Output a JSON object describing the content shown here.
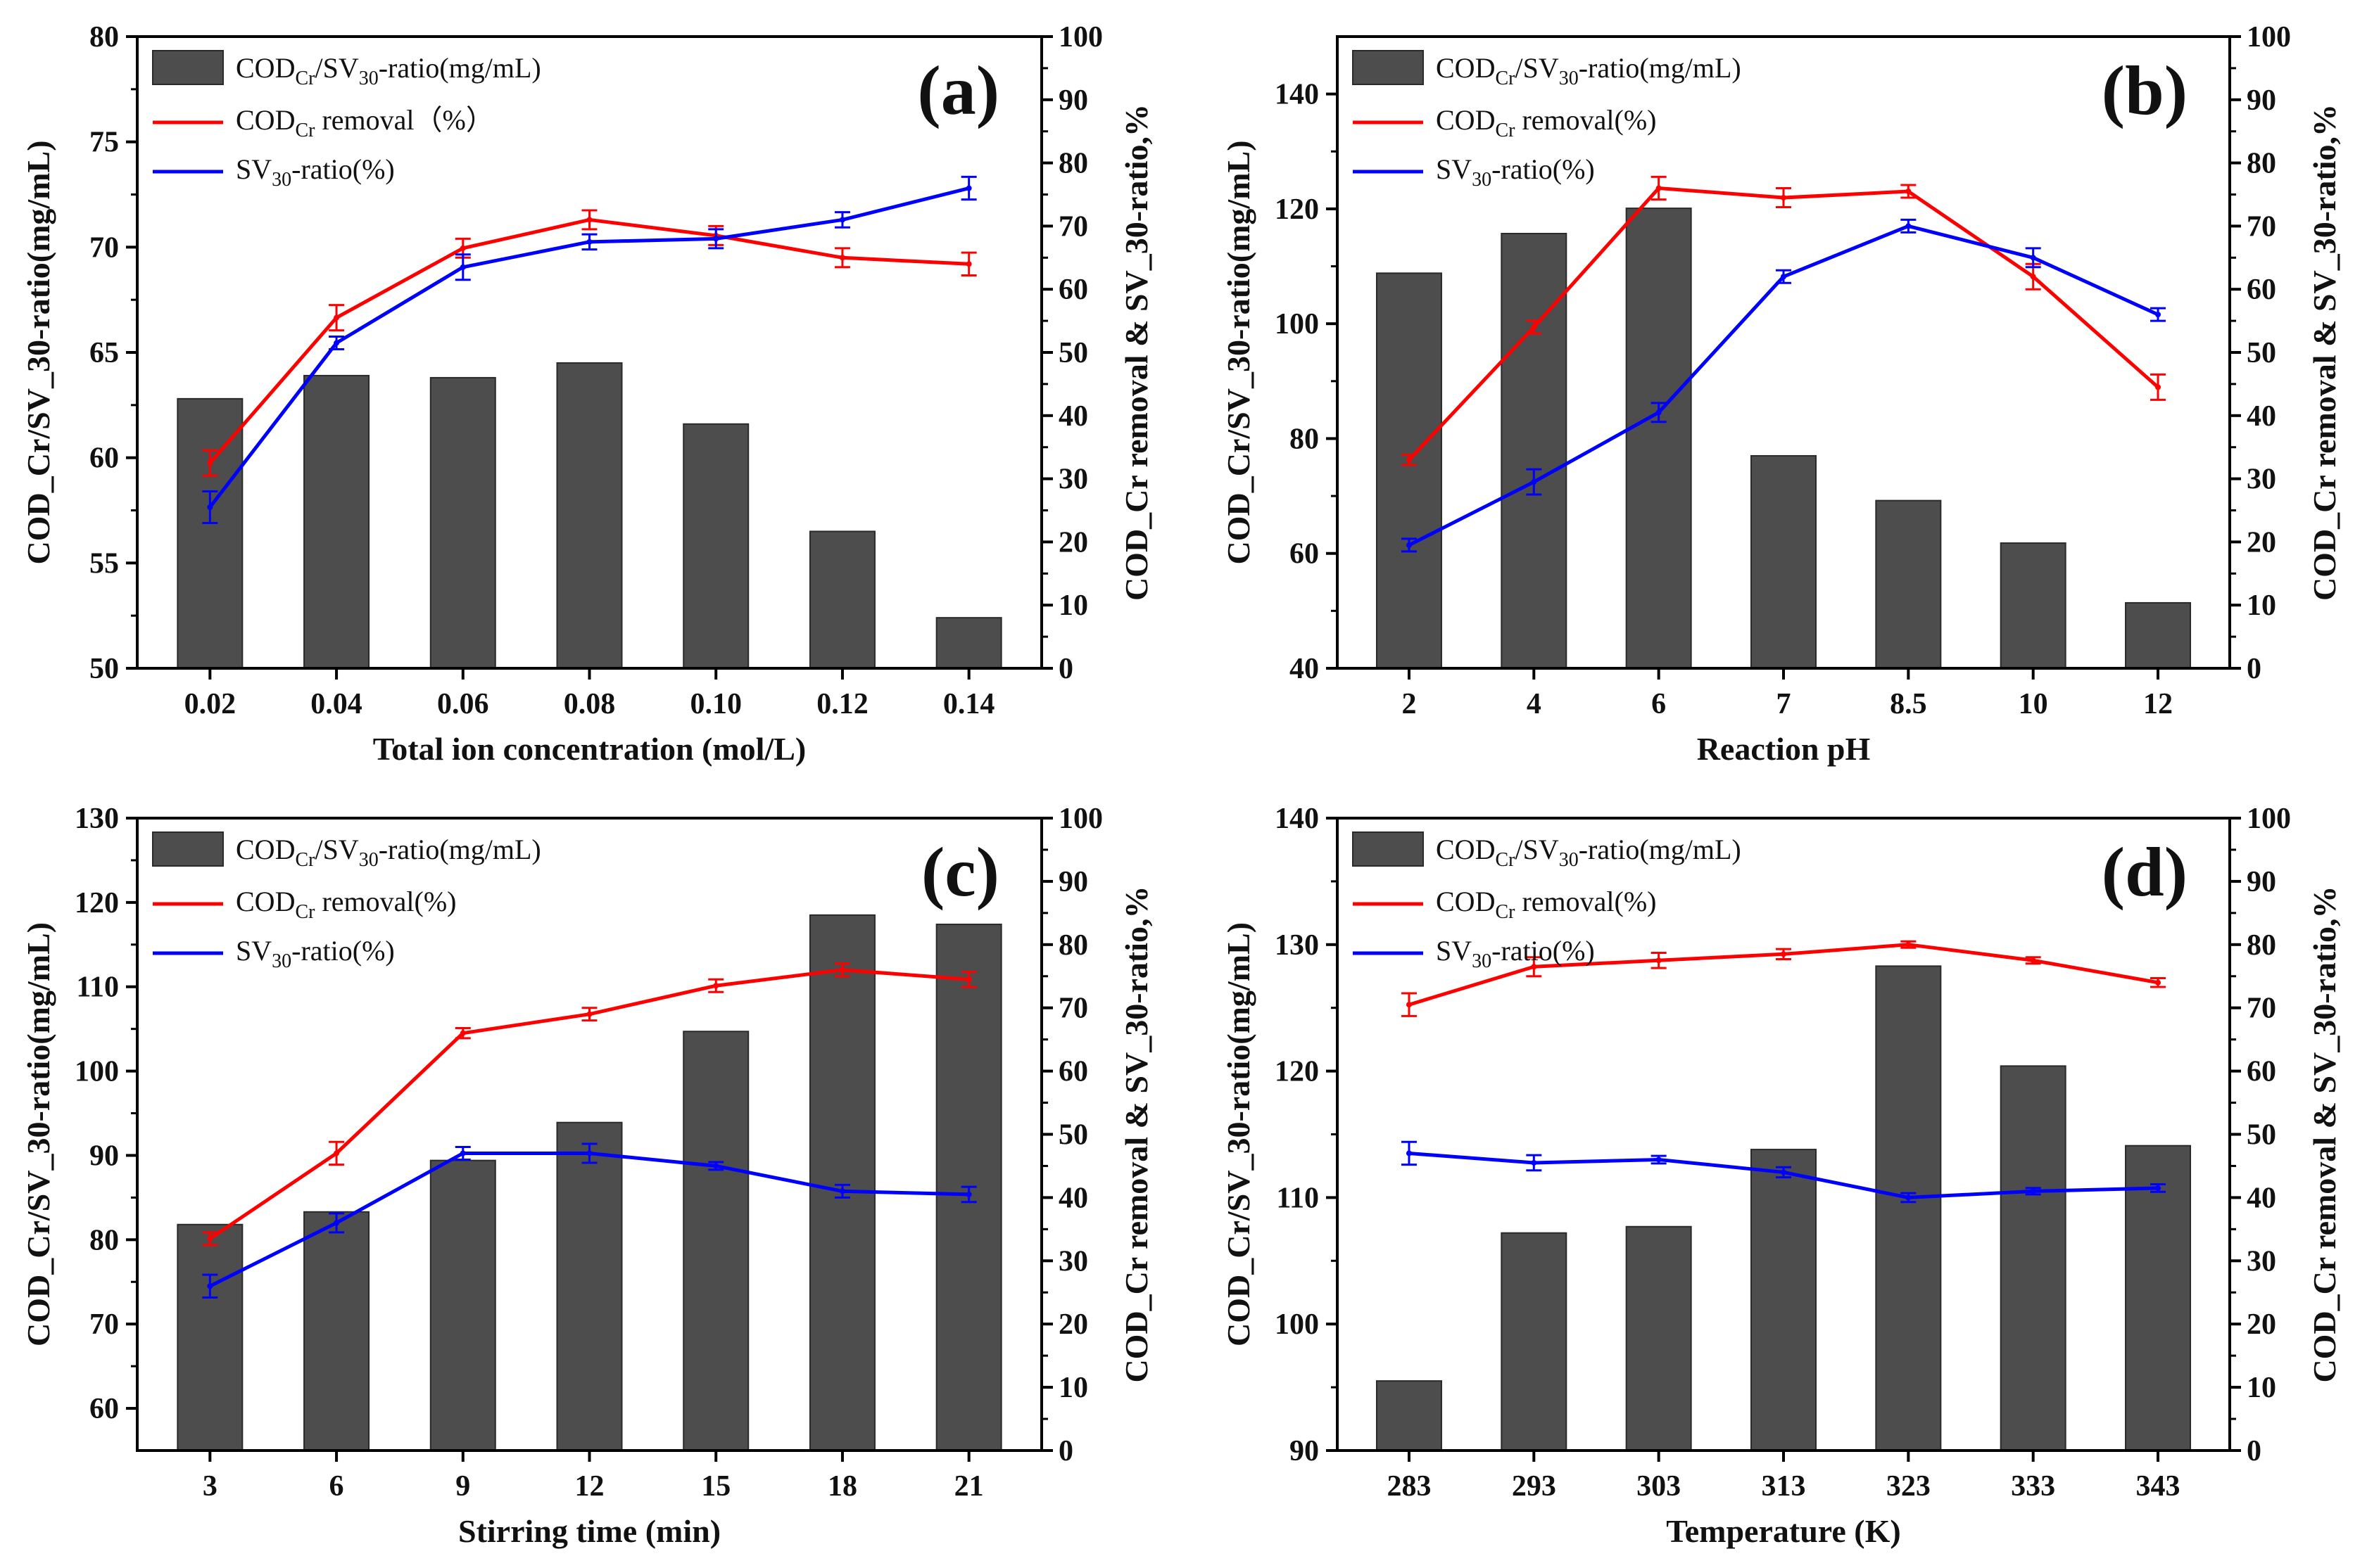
{
  "chart_data": [
    {
      "type": "bar",
      "panel_label": "(a)",
      "xlabel": "Total ion concentration (mol/L)",
      "ylabel_left": "COD_Cr/SV_30-ratio(mg/mL)",
      "ylabel_right": "COD_Cr removal & SV_30-ratio,%",
      "categories": [
        "0.02",
        "0.04",
        "0.06",
        "0.08",
        "0.10",
        "0.12",
        "0.14"
      ],
      "ylim_left": [
        50,
        80
      ],
      "yticks_left": [
        50,
        55,
        60,
        65,
        70,
        75,
        80
      ],
      "ylim_right": [
        0,
        100
      ],
      "yticks_right": [
        0,
        10,
        20,
        30,
        40,
        50,
        60,
        70,
        80,
        90,
        100
      ],
      "legend": {
        "position": "top-left",
        "bar_label": [
          "COD",
          "Cr",
          "/SV",
          "30",
          "-ratio(mg/mL)"
        ],
        "red_label": [
          "COD",
          "Cr",
          " removal（%）"
        ],
        "blue_label": [
          "SV",
          "30",
          "-ratio(%)"
        ]
      },
      "series": [
        {
          "name": "COD_Cr/SV_30-ratio(mg/mL)",
          "axis": "left",
          "kind": "bar",
          "color": "#4d4d4d",
          "values": [
            62.8,
            63.9,
            63.8,
            64.5,
            61.6,
            56.5,
            52.4
          ]
        },
        {
          "name": "COD_Cr removal（%）",
          "axis": "right",
          "kind": "line",
          "color": "#ff0000",
          "values": [
            32.5,
            55.5,
            66.5,
            71.0,
            68.5,
            65.0,
            64.0
          ],
          "errors": [
            2.0,
            2.0,
            1.5,
            1.5,
            1.5,
            1.5,
            1.8
          ]
        },
        {
          "name": "SV_30-ratio(%)",
          "axis": "right",
          "kind": "line",
          "color": "#0000ff",
          "values": [
            25.5,
            51.5,
            63.5,
            67.5,
            68.0,
            71.0,
            76.0
          ],
          "errors": [
            2.5,
            1.0,
            2.0,
            1.2,
            1.5,
            1.2,
            1.8
          ]
        }
      ]
    },
    {
      "type": "bar",
      "panel_label": "(b)",
      "xlabel": "Reaction pH",
      "ylabel_left": "COD_Cr/SV_30-ratio(mg/mL)",
      "ylabel_right": "COD_Cr removal & SV_30-ratio,%",
      "categories": [
        "2",
        "4",
        "6",
        "7",
        "8.5",
        "10",
        "12"
      ],
      "ylim_left": [
        40,
        150
      ],
      "yticks_left": [
        40,
        60,
        80,
        100,
        120,
        140
      ],
      "ylim_right": [
        0,
        100
      ],
      "yticks_right": [
        0,
        10,
        20,
        30,
        40,
        50,
        60,
        70,
        80,
        90,
        100
      ],
      "legend": {
        "position": "top-left",
        "bar_label": [
          "COD",
          "Cr",
          "/SV",
          "30",
          "-ratio(mg/mL)"
        ],
        "red_label": [
          "COD",
          "Cr",
          " removal(%)"
        ],
        "blue_label": [
          "SV",
          "30",
          "-ratio(%)"
        ]
      },
      "series": [
        {
          "name": "COD_Cr/SV_30-ratio(mg/mL)",
          "axis": "left",
          "kind": "bar",
          "color": "#4d4d4d",
          "values": [
            108.8,
            115.7,
            120.1,
            77.0,
            69.2,
            61.8,
            51.4
          ]
        },
        {
          "name": "COD_Cr removal(%)",
          "axis": "right",
          "kind": "line",
          "color": "#ff0000",
          "values": [
            33.0,
            54.0,
            76.0,
            74.5,
            75.5,
            62.0,
            44.5
          ],
          "errors": [
            0.8,
            1.0,
            1.8,
            1.5,
            1.0,
            2.0,
            2.0
          ]
        },
        {
          "name": "SV_30-ratio(%)",
          "axis": "right",
          "kind": "line",
          "color": "#0000ff",
          "values": [
            19.5,
            29.5,
            40.5,
            62.0,
            70.0,
            65.0,
            56.0
          ],
          "errors": [
            1.0,
            2.0,
            1.5,
            1.0,
            1.0,
            1.5,
            1.0
          ]
        }
      ]
    },
    {
      "type": "bar",
      "panel_label": "(c)",
      "xlabel": "Stirring time (min)",
      "ylabel_left": "COD_Cr/SV_30-ratio(mg/mL)",
      "ylabel_right": "COD_Cr removal & SV_30-ratio,%",
      "categories": [
        "3",
        "6",
        "9",
        "12",
        "15",
        "18",
        "21"
      ],
      "ylim_left": [
        55,
        130
      ],
      "yticks_left": [
        60,
        70,
        80,
        90,
        100,
        110,
        120,
        130
      ],
      "ylim_right": [
        0,
        100
      ],
      "yticks_right": [
        0,
        10,
        20,
        30,
        40,
        50,
        60,
        70,
        80,
        90,
        100
      ],
      "legend": {
        "position": "top-left",
        "bar_label": [
          "COD",
          "Cr",
          "/SV",
          "30",
          "-ratio(mg/mL)"
        ],
        "red_label": [
          "COD",
          "Cr",
          " removal(%)"
        ],
        "blue_label": [
          "SV",
          "30",
          "-ratio(%)"
        ]
      },
      "series": [
        {
          "name": "COD_Cr/SV_30-ratio(mg/mL)",
          "axis": "left",
          "kind": "bar",
          "color": "#4d4d4d",
          "values": [
            81.8,
            83.3,
            89.4,
            93.9,
            104.7,
            118.5,
            117.4
          ]
        },
        {
          "name": "COD_Cr removal(%)",
          "axis": "right",
          "kind": "line",
          "color": "#ff0000",
          "values": [
            33.5,
            47.0,
            66.0,
            69.0,
            73.5,
            76.0,
            74.5
          ],
          "errors": [
            1.0,
            1.8,
            0.8,
            1.0,
            1.0,
            1.0,
            1.2
          ]
        },
        {
          "name": "SV_30-ratio(%)",
          "axis": "right",
          "kind": "line",
          "color": "#0000ff",
          "values": [
            26.0,
            36.0,
            47.0,
            47.0,
            45.0,
            41.0,
            40.5
          ],
          "errors": [
            1.8,
            1.5,
            1.0,
            1.5,
            0.6,
            1.0,
            1.2
          ]
        }
      ]
    },
    {
      "type": "bar",
      "panel_label": "(d)",
      "xlabel": "Temperature (K)",
      "ylabel_left": "COD_Cr/SV_30-ratio(mg/mL)",
      "ylabel_right": "COD_Cr removal & SV_30-ratio,%",
      "categories": [
        "283",
        "293",
        "303",
        "313",
        "323",
        "333",
        "343"
      ],
      "ylim_left": [
        90,
        140
      ],
      "yticks_left": [
        90,
        100,
        110,
        120,
        130,
        140
      ],
      "ylim_right": [
        0,
        100
      ],
      "yticks_right": [
        0,
        10,
        20,
        30,
        40,
        50,
        60,
        70,
        80,
        90,
        100
      ],
      "legend": {
        "position": "top-left",
        "bar_label": [
          "COD",
          "Cr",
          "/SV",
          "30",
          "-ratio(mg/mL)"
        ],
        "red_label": [
          "COD",
          "Cr",
          " removal(%)"
        ],
        "blue_label": [
          "SV",
          "30",
          "-ratio(%)"
        ]
      },
      "series": [
        {
          "name": "COD_Cr/SV_30-ratio(mg/mL)",
          "axis": "left",
          "kind": "bar",
          "color": "#4d4d4d",
          "values": [
            95.5,
            107.2,
            107.7,
            113.8,
            128.3,
            120.4,
            114.1
          ]
        },
        {
          "name": "COD_Cr removal(%)",
          "axis": "right",
          "kind": "line",
          "color": "#ff0000",
          "values": [
            70.5,
            76.5,
            77.5,
            78.5,
            80.0,
            77.5,
            74.0
          ],
          "errors": [
            1.8,
            1.5,
            1.2,
            0.8,
            0.5,
            0.5,
            0.7
          ]
        },
        {
          "name": "SV_30-ratio(%)",
          "axis": "right",
          "kind": "line",
          "color": "#0000ff",
          "values": [
            47.0,
            45.5,
            46.0,
            44.0,
            40.0,
            41.0,
            41.5
          ],
          "errors": [
            1.8,
            1.2,
            0.6,
            0.8,
            0.7,
            0.5,
            0.6
          ]
        }
      ]
    }
  ]
}
